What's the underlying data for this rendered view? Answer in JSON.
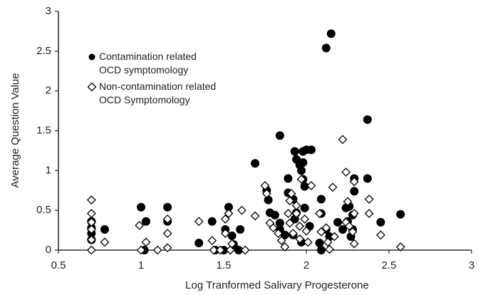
{
  "chart_data": {
    "type": "scatter",
    "x_label": "Log Tranformed Salivary Progesterone",
    "y_label": "Average Question Value",
    "xlim": [
      0.5,
      3
    ],
    "xticks": [
      0.5,
      1,
      1.5,
      2,
      2.5,
      3
    ],
    "ylim": [
      0,
      3
    ],
    "yticks": [
      0,
      0.5,
      1,
      1.5,
      2,
      2.5,
      3
    ],
    "series": [
      {
        "name": "Contamination related OCD symptomology",
        "marker": "circle",
        "color": "#000000",
        "x": [
          0.7,
          0.7,
          0.7,
          0.7,
          0.78,
          1.0,
          1.02,
          1.03,
          1.16,
          1.16,
          1.35,
          1.43,
          1.45,
          1.53,
          1.51,
          1.55,
          1.56,
          1.6,
          1.5,
          1.59,
          1.69,
          1.76,
          1.77,
          1.84,
          1.78,
          1.81,
          1.84,
          1.84,
          1.87,
          1.89,
          1.89,
          1.92,
          1.93,
          1.94,
          1.96,
          1.98,
          1.98,
          1.97,
          1.98,
          1.99,
          1.94,
          1.92,
          1.93,
          2.0,
          2.03,
          1.99,
          2.02,
          1.97,
          2.09,
          2.09,
          2.15,
          2.12,
          2.08,
          2.09,
          2.12,
          2.14,
          2.19,
          2.22,
          2.24,
          2.26,
          2.28,
          2.25,
          2.28,
          2.27,
          2.29,
          2.29,
          2.37,
          2.37,
          2.45,
          2.57
        ],
        "values": [
          0.36,
          0.28,
          0.21,
          0.13,
          0.26,
          0.54,
          0,
          0.36,
          0.54,
          0.36,
          0.09,
          0.36,
          0,
          0.54,
          0.26,
          0.18,
          0.07,
          0.26,
          0,
          0,
          1.09,
          0.75,
          0.63,
          1.44,
          0.47,
          0.44,
          0.34,
          0.26,
          0.19,
          0.9,
          0.72,
          0.64,
          1.24,
          1.14,
          1.07,
          1.24,
          1.1,
          1.0,
          0.89,
          0.8,
          0.47,
          0.19,
          0.39,
          1.26,
          1.26,
          0.53,
          0.3,
          0.1,
          0.64,
          0.46,
          2.72,
          2.54,
          0.09,
          0,
          0.26,
          0.17,
          0.35,
          0.26,
          0.53,
          0.55,
          0.44,
          0.36,
          0.26,
          0.17,
          0.9,
          0.74,
          1.64,
          0.9,
          0.35,
          0.45
        ]
      },
      {
        "name": "Non-contamination related OCD Symptomology",
        "marker": "diamond",
        "color": "#000000",
        "x": [
          0.7,
          0.7,
          0.7,
          0.7,
          0.7,
          0.7,
          0.78,
          0.99,
          1.0,
          1.03,
          1.1,
          1.16,
          1.16,
          1.16,
          1.35,
          1.43,
          1.44,
          1.48,
          1.51,
          1.53,
          1.51,
          1.55,
          1.61,
          1.63,
          1.54,
          1.69,
          1.75,
          1.76,
          1.78,
          1.8,
          1.83,
          1.85,
          1.87,
          1.89,
          1.9,
          1.91,
          1.9,
          1.92,
          1.94,
          1.94,
          1.96,
          1.96,
          1.97,
          1.99,
          2.0,
          2.01,
          2.03,
          2.08,
          2.09,
          2.12,
          2.13,
          2.14,
          2.16,
          2.17,
          2.22,
          2.24,
          2.25,
          2.24,
          2.26,
          2.28,
          2.29,
          2.29,
          2.29,
          2.38,
          2.38,
          2.45,
          2.57
        ],
        "values": [
          0.63,
          0.46,
          0.35,
          0.26,
          0.13,
          0,
          0.1,
          0.31,
          0,
          0.1,
          0,
          0.03,
          0.21,
          0.39,
          0.36,
          0.12,
          0,
          0,
          0.39,
          0.46,
          0.21,
          0.08,
          0.5,
          0,
          0,
          0.43,
          0.81,
          0.71,
          0.34,
          0.28,
          0.21,
          0.12,
          0.04,
          0.46,
          0.62,
          0.71,
          0.34,
          0.21,
          0.56,
          0.46,
          0.3,
          0.14,
          0.89,
          0.39,
          0.24,
          0.1,
          0.81,
          0.46,
          0.23,
          0.28,
          0.1,
          0.01,
          0.79,
          0.17,
          1.39,
          0.98,
          0.61,
          0.35,
          0.3,
          0.23,
          0.86,
          0.46,
          0.08,
          0.64,
          0.46,
          0.19,
          0.04
        ]
      }
    ]
  }
}
